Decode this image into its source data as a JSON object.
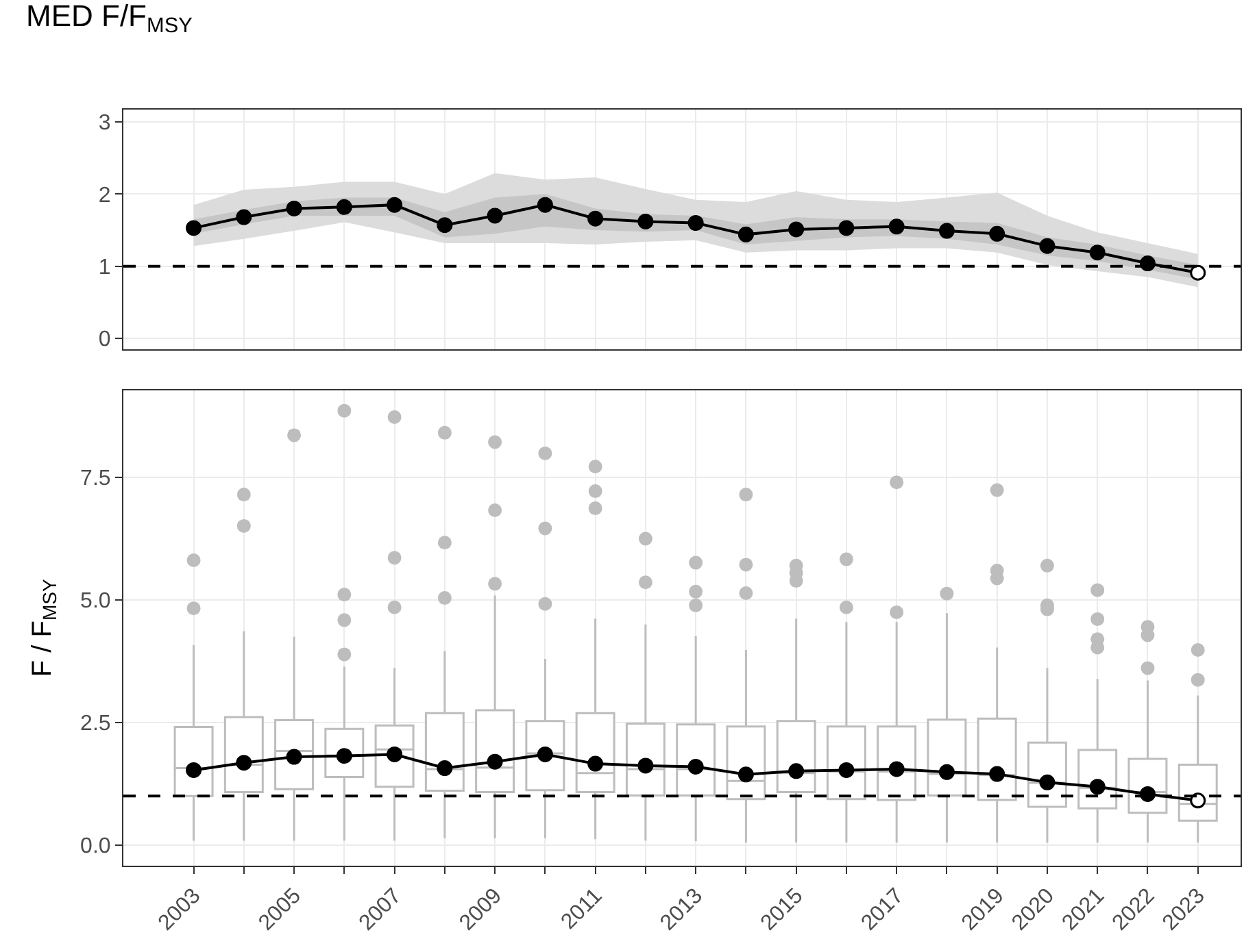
{
  "chart_data": [
    {
      "type": "line",
      "title": "MED F/F$_{MSY}$",
      "categories": [
        "2003",
        null,
        "2005",
        null,
        "2007",
        null,
        "2009",
        null,
        "2011",
        null,
        "2013",
        null,
        "2015",
        null,
        "2017",
        null,
        "2019",
        "2020",
        "2021",
        "2022",
        "2023"
      ],
      "series": [
        {
          "type": "area",
          "color": "#dcdcdc",
          "values": [
            null,
            null,
            null,
            null,
            null,
            null,
            null,
            null,
            null,
            null,
            null,
            null,
            null,
            null,
            null,
            null,
            null,
            null,
            null,
            null,
            null
          ],
          "lower": [
            1.28,
            1.38,
            1.49,
            1.61,
            1.47,
            1.32,
            1.32,
            1.32,
            1.3,
            1.34,
            1.36,
            1.19,
            1.22,
            1.22,
            1.25,
            1.25,
            1.19,
            1.02,
            0.93,
            0.85,
            0.71
          ],
          "upper": [
            1.85,
            2.06,
            2.1,
            2.17,
            2.17,
            2.0,
            2.29,
            2.2,
            2.23,
            2.07,
            1.92,
            1.89,
            2.04,
            1.92,
            1.89,
            1.95,
            2.02,
            1.7,
            1.47,
            1.32,
            1.17
          ]
        },
        {
          "type": "area",
          "color": "#c6c6c6",
          "values": [
            null,
            null,
            null,
            null,
            null,
            null,
            null,
            null,
            null,
            null,
            null,
            null,
            null,
            null,
            null,
            null,
            null,
            null,
            null,
            null,
            null
          ],
          "lower": [
            1.45,
            1.58,
            1.7,
            1.7,
            1.7,
            1.4,
            1.45,
            1.55,
            1.5,
            1.48,
            1.5,
            1.3,
            1.35,
            1.4,
            1.42,
            1.38,
            1.3,
            1.15,
            1.07,
            0.95,
            0.82
          ],
          "upper": [
            1.65,
            1.78,
            1.9,
            1.95,
            1.95,
            1.75,
            1.95,
            2.0,
            1.8,
            1.72,
            1.7,
            1.58,
            1.68,
            1.65,
            1.65,
            1.62,
            1.6,
            1.4,
            1.3,
            1.15,
            1.02
          ]
        },
        {
          "type": "line",
          "color": "#000000",
          "colors": [
            "#000000",
            "#000000",
            "#000000",
            "#000000",
            "#000000",
            "#000000",
            "#000000",
            "#000000",
            "#000000",
            "#000000",
            "#000000",
            "#000000",
            "#000000",
            "#000000",
            "#000000",
            "#000000",
            "#000000",
            "#000000",
            "#000000",
            "#000000",
            "#ffffff"
          ],
          "values": [
            1.53,
            1.68,
            1.8,
            1.82,
            1.85,
            1.57,
            1.7,
            1.85,
            1.66,
            1.62,
            1.6,
            1.44,
            1.51,
            1.53,
            1.55,
            1.49,
            1.45,
            1.28,
            1.19,
            1.04,
            0.91
          ]
        }
      ],
      "ylim": [
        -0.15,
        3.17
      ],
      "yticks": [
        0,
        1,
        2,
        3
      ],
      "ref_lines": [
        {
          "axis": "y",
          "value": 1,
          "color": "#000000",
          "line_style": "dashed"
        }
      ],
      "grid": true,
      "marker": "circle",
      "line_style": "solid",
      "tick_labels": "y"
    },
    {
      "type": "box",
      "ylabel": "F / F$_{MSY}$",
      "categories": [
        "2003",
        null,
        "2005",
        null,
        "2007",
        null,
        "2009",
        null,
        "2011",
        null,
        "2013",
        null,
        "2015",
        null,
        "2017",
        null,
        "2019",
        "2020",
        "2021",
        "2022",
        "2023"
      ],
      "boxes": [
        {
          "low": 0.09,
          "q1": 1.0,
          "median": 1.57,
          "q3": 2.41,
          "high": 4.08,
          "outliers": [
            4.83,
            5.81
          ]
        },
        {
          "low": 0.09,
          "q1": 1.08,
          "median": 1.64,
          "q3": 2.61,
          "high": 4.36,
          "outliers": [
            6.51,
            7.15
          ]
        },
        {
          "low": 0.09,
          "q1": 1.14,
          "median": 1.92,
          "q3": 2.55,
          "high": 4.25,
          "outliers": [
            8.36
          ]
        },
        {
          "low": 0.09,
          "q1": 1.39,
          "median": 1.83,
          "q3": 2.37,
          "high": 3.64,
          "outliers": [
            3.89,
            4.59,
            5.11,
            8.86
          ]
        },
        {
          "low": 0.09,
          "q1": 1.19,
          "median": 1.95,
          "q3": 2.44,
          "high": 3.61,
          "outliers": [
            4.85,
            5.86,
            8.73
          ]
        },
        {
          "low": 0.14,
          "q1": 1.11,
          "median": 1.55,
          "q3": 2.69,
          "high": 3.96,
          "outliers": [
            5.04,
            6.17,
            8.41
          ]
        },
        {
          "low": 0.14,
          "q1": 1.08,
          "median": 1.58,
          "q3": 2.75,
          "high": 5.09,
          "outliers": [
            5.33,
            6.83,
            8.22
          ]
        },
        {
          "low": 0.14,
          "q1": 1.12,
          "median": 1.87,
          "q3": 2.53,
          "high": 3.8,
          "outliers": [
            4.92,
            6.46,
            7.99
          ]
        },
        {
          "low": 0.12,
          "q1": 1.08,
          "median": 1.47,
          "q3": 2.69,
          "high": 4.62,
          "outliers": [
            6.87,
            7.22,
            7.72
          ]
        },
        {
          "low": 0.09,
          "q1": 1.01,
          "median": 1.55,
          "q3": 2.48,
          "high": 4.5,
          "outliers": [
            5.36,
            6.25
          ]
        },
        {
          "low": 0.08,
          "q1": 1.01,
          "median": 1.55,
          "q3": 2.46,
          "high": 4.26,
          "outliers": [
            4.89,
            5.17,
            5.76
          ]
        },
        {
          "low": 0.05,
          "q1": 0.94,
          "median": 1.31,
          "q3": 2.42,
          "high": 3.98,
          "outliers": [
            5.14,
            5.72,
            7.15
          ]
        },
        {
          "low": 0.05,
          "q1": 1.08,
          "median": 1.47,
          "q3": 2.53,
          "high": 4.62,
          "outliers": [
            5.39,
            5.55,
            5.7
          ]
        },
        {
          "low": 0.05,
          "q1": 0.94,
          "median": 1.5,
          "q3": 2.42,
          "high": 4.55,
          "outliers": [
            4.85,
            5.83
          ]
        },
        {
          "low": 0.05,
          "q1": 0.92,
          "median": 1.5,
          "q3": 2.42,
          "high": 4.55,
          "outliers": [
            4.75,
            7.4
          ]
        },
        {
          "low": 0.05,
          "q1": 1.01,
          "median": 1.45,
          "q3": 2.56,
          "high": 4.73,
          "outliers": [
            5.13
          ]
        },
        {
          "low": 0.05,
          "q1": 0.92,
          "median": 1.43,
          "q3": 2.58,
          "high": 4.03,
          "outliers": [
            5.44,
            5.6,
            7.24
          ]
        },
        {
          "low": 0.05,
          "q1": 0.78,
          "median": 1.27,
          "q3": 2.09,
          "high": 3.61,
          "outliers": [
            4.81,
            4.89,
            5.7
          ]
        },
        {
          "low": 0.05,
          "q1": 0.75,
          "median": 1.17,
          "q3": 1.94,
          "high": 3.39,
          "outliers": [
            4.03,
            4.2,
            4.61,
            5.2
          ]
        },
        {
          "low": 0.05,
          "q1": 0.66,
          "median": 1.08,
          "q3": 1.76,
          "high": 3.36,
          "outliers": [
            3.61,
            4.28,
            4.45
          ]
        },
        {
          "low": 0.05,
          "q1": 0.5,
          "median": 0.84,
          "q3": 1.64,
          "high": 3.05,
          "outliers": [
            3.37,
            3.98
          ]
        }
      ],
      "color": "#bdbdbd",
      "series": [
        {
          "type": "line",
          "color": "#000000",
          "colors": [
            "#000000",
            "#000000",
            "#000000",
            "#000000",
            "#000000",
            "#000000",
            "#000000",
            "#000000",
            "#000000",
            "#000000",
            "#000000",
            "#000000",
            "#000000",
            "#000000",
            "#000000",
            "#000000",
            "#000000",
            "#000000",
            "#000000",
            "#000000",
            "#ffffff"
          ],
          "values": [
            1.53,
            1.68,
            1.8,
            1.82,
            1.85,
            1.57,
            1.7,
            1.85,
            1.66,
            1.62,
            1.6,
            1.44,
            1.51,
            1.53,
            1.55,
            1.49,
            1.45,
            1.28,
            1.19,
            1.04,
            0.91
          ]
        }
      ],
      "ylim": [
        -0.42,
        9.28
      ],
      "yticks": [
        {
          "value": 0,
          "label": "0.0"
        },
        {
          "value": 2.5,
          "label": "2.5"
        },
        {
          "value": 5,
          "label": "5.0"
        },
        {
          "value": 7.5,
          "label": "7.5"
        }
      ],
      "ref_lines": [
        {
          "axis": "y",
          "value": 1,
          "color": "#000000",
          "line_style": "dashed"
        }
      ],
      "grid": true,
      "marker": "circle",
      "line_style": "solid"
    }
  ]
}
